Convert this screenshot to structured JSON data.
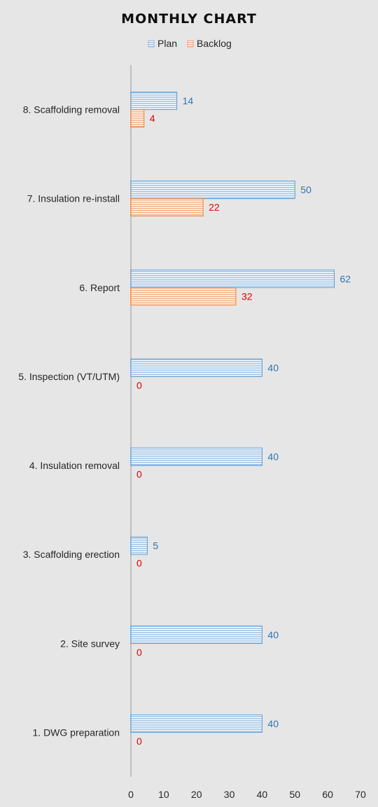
{
  "chart_data": {
    "type": "bar",
    "orientation": "horizontal",
    "title": "MONTHLY CHART",
    "categories": [
      "1. DWG preparation",
      "2. Site survey",
      "3. Scaffolding erection",
      "4. Insulation removal",
      "5. Inspection (VT/UTM)",
      "6. Report",
      "7. Insulation re-install",
      "8. Scaffolding removal"
    ],
    "series": [
      {
        "name": "Plan",
        "values": [
          40,
          40,
          5,
          40,
          40,
          62,
          50,
          14
        ]
      },
      {
        "name": "Backlog",
        "values": [
          0,
          0,
          0,
          0,
          0,
          32,
          22,
          4
        ]
      }
    ],
    "xlim": [
      0,
      70
    ],
    "xticks": [
      "0",
      "10",
      "20",
      "30",
      "40",
      "50",
      "60",
      "70"
    ],
    "legend_position": "top",
    "grid": false,
    "colors": {
      "plan_fill": "#9dc3e6",
      "plan_line": "#5b9bd5",
      "plan_label": "#2e75b6",
      "backlog_fill": "#f4b183",
      "backlog_line": "#ed7d31",
      "backlog_label": "#e00000",
      "axis": "#bfbfbf",
      "background": "#e6e6e6"
    }
  }
}
